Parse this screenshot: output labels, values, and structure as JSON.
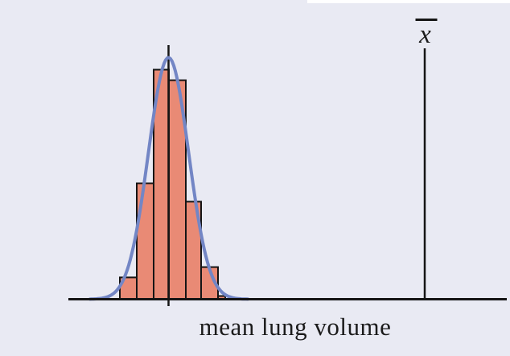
{
  "figure": {
    "background_color": "#e9eaf3",
    "top_strip_color": "#ffffff"
  },
  "chart_data": {
    "type": "bar",
    "subtype": "histogram-with-normal-curve-overlay",
    "title": "",
    "xlabel": "mean lung volume",
    "ylabel": "",
    "grid": false,
    "x_tick_labels": [],
    "y_tick_labels": [],
    "categories": [
      "bin-1",
      "bin-2",
      "bin-3",
      "bin-4",
      "bin-5",
      "bin-6",
      "bin-7"
    ],
    "values": [
      0.095,
      0.505,
      1.0,
      0.954,
      0.425,
      0.14,
      0.014
    ],
    "values_note": "relative bar heights; no numeric y-axis is shown in the figure",
    "bar_color": "#e98a75",
    "bar_outline_color": "#151515",
    "axis_color": "#151515",
    "text_color": "#1b1b1b",
    "overlays": [
      {
        "id": "normal-curve",
        "kind": "curve",
        "shape": "normal",
        "color": "#7386c5",
        "description": "bell curve fitted over histogram, peak at histogram center"
      },
      {
        "id": "mean-line",
        "kind": "vline",
        "label": "",
        "color": "#151515",
        "position": "center of histogram, extends above bars and slightly below axis"
      },
      {
        "id": "xbar-line",
        "kind": "vline",
        "label": "x̄",
        "letter": "x",
        "color": "#151515",
        "position": "far right of axis, well outside histogram"
      }
    ]
  }
}
